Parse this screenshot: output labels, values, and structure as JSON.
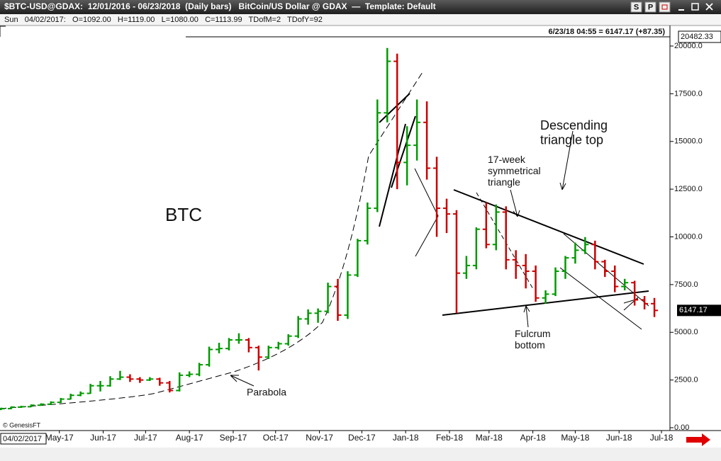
{
  "window": {
    "title": "$BTC-USD@GDAX:  12/01/2016 - 06/23/2018  (Daily bars)   BitCoin/US Dollar @ GDAX  —  Template: Default",
    "buttons": [
      "S",
      "P"
    ]
  },
  "info_bar": "Sun   04/02/2017:   O=1092.00   H=1119.00   L=1080.00   C=1113.99   TDofM=2   TDofY=92",
  "date_box": "04/02/2017",
  "chart_data": {
    "type": "ohlc",
    "title": "BTC",
    "last_quote": "6/23/18 04:55 = 6147.17 (+87.35)",
    "credit": "© GenesisFT",
    "up_color": "#009a00",
    "down_color": "#cc0000",
    "annotations": [
      "Descending\ntriangle top",
      "17-week\nsymmetrical\ntriangle",
      "Fulcrum\nbottom",
      "Parabola"
    ],
    "x": [
      -41,
      -34,
      -27,
      -20,
      -13,
      -6,
      1,
      8,
      15,
      22,
      29,
      36,
      43,
      50,
      57,
      64,
      71,
      78,
      85,
      92,
      99,
      106,
      113,
      120,
      127,
      134,
      141,
      148,
      155,
      162,
      169,
      176,
      183,
      190,
      197,
      204,
      211,
      218,
      225,
      232,
      239,
      246,
      253,
      260,
      267,
      274,
      281,
      288,
      295,
      302,
      309,
      316,
      323,
      330,
      337,
      344,
      351,
      358,
      365,
      372,
      379,
      386,
      393,
      400,
      407,
      414,
      421
    ],
    "open": [
      960,
      1000,
      1080,
      1100,
      1180,
      1230,
      1330,
      1500,
      1700,
      1800,
      2200,
      2200,
      2550,
      2650,
      2550,
      2500,
      2550,
      2350,
      1950,
      2750,
      2800,
      3300,
      4100,
      4150,
      4600,
      4600,
      4200,
      3700,
      4200,
      4400,
      4800,
      5700,
      6000,
      6100,
      7400,
      5900,
      8000,
      9800,
      11500,
      16500,
      19200,
      13900,
      14800,
      16000,
      13600,
      11500,
      11200,
      8100,
      8500,
      10400,
      9600,
      11300,
      8800,
      8500,
      8200,
      6800,
      7000,
      8200,
      8900,
      9300,
      9600,
      8700,
      8200,
      7400,
      7600,
      6700,
      6500
    ],
    "high": [
      1050,
      1120,
      1150,
      1220,
      1280,
      1380,
      1560,
      1780,
      1900,
      2300,
      2450,
      2700,
      2980,
      2800,
      2650,
      2650,
      2620,
      2450,
      2900,
      2950,
      3400,
      4250,
      4450,
      4700,
      4950,
      4700,
      4300,
      4300,
      4500,
      4900,
      5850,
      6200,
      6250,
      7600,
      7800,
      8200,
      9900,
      11800,
      17200,
      19900,
      19600,
      15800,
      17200,
      17100,
      14200,
      12000,
      11400,
      9000,
      10500,
      11800,
      11700,
      11600,
      9300,
      9100,
      8500,
      7200,
      8400,
      9000,
      9700,
      9990,
      9800,
      8800,
      8500,
      7800,
      7700,
      6900,
      6800
    ],
    "low": [
      940,
      980,
      1040,
      1080,
      1150,
      1200,
      1300,
      1480,
      1650,
      1780,
      1900,
      2150,
      2500,
      2400,
      2350,
      2450,
      2200,
      1850,
      1900,
      2650,
      2700,
      3200,
      3900,
      4050,
      4400,
      3950,
      3000,
      3600,
      4100,
      4300,
      4700,
      5400,
      5500,
      6000,
      5600,
      5700,
      7900,
      9600,
      11300,
      16000,
      12500,
      12700,
      14000,
      13000,
      10000,
      10200,
      6000,
      7800,
      8300,
      9400,
      9300,
      8300,
      7800,
      7300,
      6600,
      6500,
      6900,
      7800,
      8600,
      9100,
      8300,
      7900,
      7100,
      7200,
      6400,
      6200,
      5800
    ],
    "close": [
      1000,
      1080,
      1100,
      1180,
      1230,
      1330,
      1500,
      1700,
      1800,
      2200,
      2200,
      2550,
      2650,
      2550,
      2500,
      2550,
      2350,
      1950,
      2750,
      2800,
      3300,
      4100,
      4150,
      4600,
      4600,
      4200,
      3700,
      4200,
      4400,
      4800,
      5700,
      6000,
      6100,
      7400,
      5900,
      8000,
      9800,
      11500,
      16500,
      19200,
      13900,
      14800,
      16000,
      13600,
      11500,
      11200,
      8100,
      8500,
      10400,
      9600,
      11300,
      8800,
      8500,
      8200,
      6800,
      7000,
      8200,
      8900,
      9300,
      9600,
      8700,
      8200,
      7400,
      7600,
      6700,
      6500,
      6147.17
    ],
    "xlim": [
      -42,
      432
    ],
    "xticks": [
      {
        "value": 0,
        "label": "May-17"
      },
      {
        "value": 31,
        "label": "Jun-17"
      },
      {
        "value": 61,
        "label": "Jul-17"
      },
      {
        "value": 92,
        "label": "Aug-17"
      },
      {
        "value": 123,
        "label": "Sep-17"
      },
      {
        "value": 153,
        "label": "Oct-17"
      },
      {
        "value": 184,
        "label": "Nov-17"
      },
      {
        "value": 214,
        "label": "Dec-17"
      },
      {
        "value": 245,
        "label": "Jan-18"
      },
      {
        "value": 276,
        "label": "Feb-18"
      },
      {
        "value": 304,
        "label": "Mar-18"
      },
      {
        "value": 335,
        "label": "Apr-18"
      },
      {
        "value": 365,
        "label": "May-18"
      },
      {
        "value": 396,
        "label": "Jun-18"
      },
      {
        "value": 426,
        "label": "Jul-18"
      }
    ],
    "ylim": [
      -148,
      20482.33
    ],
    "yticks": [
      {
        "value": 0,
        "label": "0.00"
      },
      {
        "value": 2500,
        "label": "2500.0"
      },
      {
        "value": 5000,
        "label": "5000.0"
      },
      {
        "value": 7500,
        "label": "7500.0"
      },
      {
        "value": 10000,
        "label": "10000.0"
      },
      {
        "value": 12500,
        "label": "12500.0"
      },
      {
        "value": 15000,
        "label": "15000.0"
      },
      {
        "value": 17500,
        "label": "17500.0"
      },
      {
        "value": 20000,
        "label": "20000.0"
      }
    ],
    "grid": false
  }
}
